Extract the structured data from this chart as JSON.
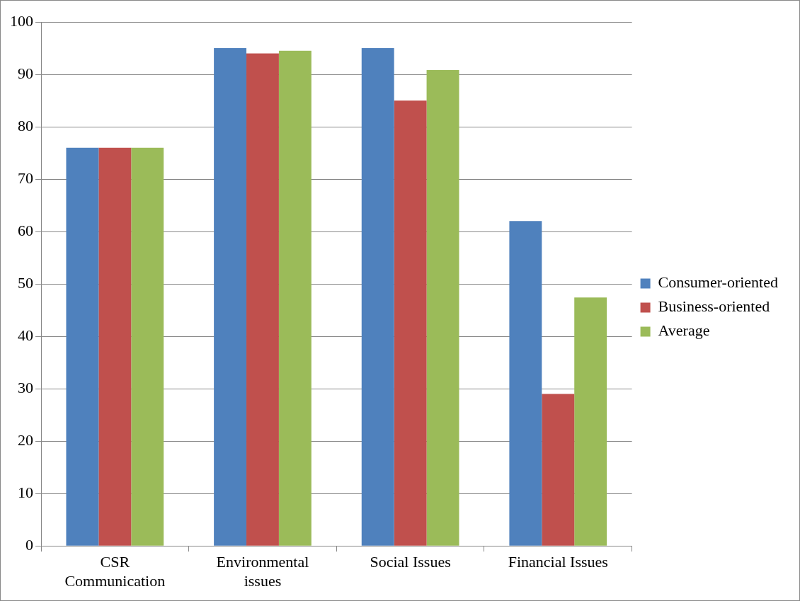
{
  "chart_data": {
    "type": "bar",
    "categories": [
      "CSR Communication",
      "Environmental issues",
      "Social Issues",
      "Financial Issues"
    ],
    "series": [
      {
        "name": "Consumer-oriented",
        "color": "#4f81bd",
        "values": [
          76,
          95,
          95,
          62
        ]
      },
      {
        "name": "Business-oriented",
        "color": "#c0504d",
        "values": [
          76,
          94,
          85,
          29
        ]
      },
      {
        "name": "Average",
        "color": "#9bbb59",
        "values": [
          76,
          94.5,
          90.8,
          47.4
        ]
      }
    ],
    "ylim": [
      0,
      100
    ],
    "yticks": [
      0,
      10,
      20,
      30,
      40,
      50,
      60,
      70,
      80,
      90,
      100
    ],
    "grid": "y",
    "legend": "right"
  }
}
